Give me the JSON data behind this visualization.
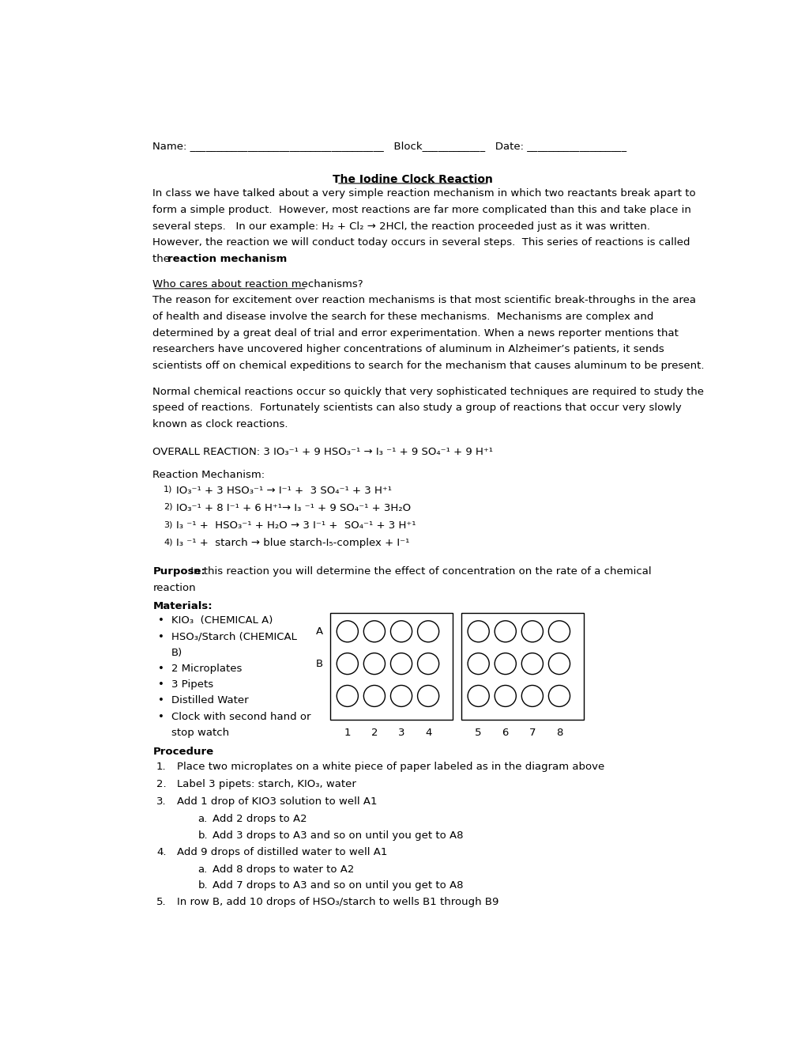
{
  "bg_color": "#ffffff",
  "text_color": "#000000",
  "title": "The Iodine Clock Reaction",
  "who_cares_heading": "Who cares about reaction mechanisms?",
  "overall_reaction": "OVERALL REACTION: 3 IO₃⁻¹ + 9 HSO₃⁻¹ → I₃ ⁻¹ + 9 SO₄⁻¹ + 9 H⁺¹",
  "rxn_mechanism_label": "Reaction Mechanism:",
  "rxn1": "IO₃⁻¹ + 3 HSO₃⁻¹ → I⁻¹ +  3 SO₄⁻¹ + 3 H⁺¹",
  "rxn2": "IO₃⁻¹ + 8 I⁻¹ + 6 H⁺¹→ I₃ ⁻¹ + 9 SO₄⁻¹ + 3H₂O",
  "rxn3": "I₃ ⁻¹ +  HSO₃⁻¹ + H₂O → 3 I⁻¹ +  SO₄⁻¹ + 3 H⁺¹",
  "rxn4": "I₃ ⁻¹ +  starch → blue starch-I₅-complex + I⁻¹",
  "purpose_bold": "Purpose:",
  "purpose_rest": " In this reaction you will determine the effect of concentration on the rate of a chemical",
  "purpose_rest2": "reaction",
  "materials_bold": "Materials:",
  "mat1": "KIO₃  (CHEMICAL A)",
  "mat2_line1": "HSO₃/Starch (CHEMICAL",
  "mat2_line2": "B)",
  "mat3": "2 Microplates",
  "mat4": "3 Pipets",
  "mat5": "Distilled Water",
  "mat6_line1": "Clock with second hand or",
  "mat6_line2": "stop watch",
  "procedure_bold": "Procedure",
  "proc1": "Place two microplates on a white piece of paper labeled as in the diagram above",
  "proc2": "Label 3 pipets: starch, KIO₃, water",
  "proc3": "Add 1 drop of KIO3 solution to well A1",
  "proc3a": "Add 2 drops to A2",
  "proc3b": "Add 3 drops to A3 and so on until you get to A8",
  "proc4": "Add 9 drops of distilled water to well A1",
  "proc4a": "Add 8 drops to water to A2",
  "proc4b": "Add 7 drops to A3 and so on until you get to A8",
  "proc5": "In row B, add 10 drops of HSO₃/starch to wells B1 through B9",
  "col_labels_left": [
    "1",
    "2",
    "3",
    "4"
  ],
  "col_labels_right": [
    "5",
    "6",
    "7",
    "8"
  ]
}
